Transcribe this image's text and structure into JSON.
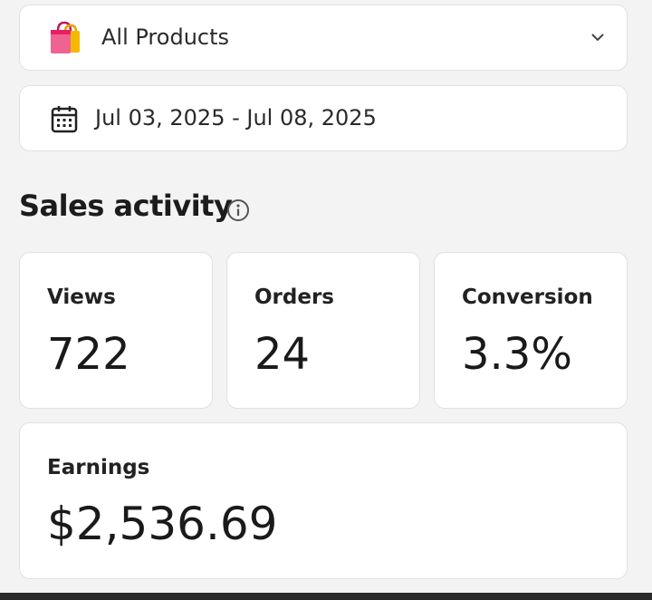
{
  "filters": {
    "product": "All Products",
    "date_range": "Jul 03, 2025 - Jul 08, 2025"
  },
  "section": {
    "title": "Sales activity"
  },
  "stats": [
    {
      "label": "Views",
      "value": "722"
    },
    {
      "label": "Orders",
      "value": "24"
    },
    {
      "label": "Conversion",
      "value": "3.3%"
    }
  ],
  "earnings": {
    "label": "Earnings",
    "value": "$2,536.69"
  }
}
